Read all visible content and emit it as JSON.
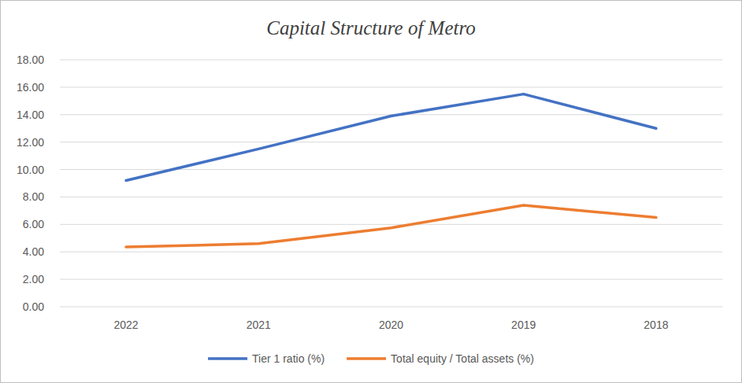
{
  "chart_data": {
    "type": "line",
    "title": "Capital Structure of Metro",
    "categories": [
      "2022",
      "2021",
      "2020",
      "2019",
      "2018"
    ],
    "series": [
      {
        "name": "Tier 1 ratio (%)",
        "color": "#4472c4",
        "values": [
          9.2,
          11.5,
          13.9,
          15.5,
          13.0
        ]
      },
      {
        "name": "Total equity / Total assets (%)",
        "color": "#ed7d31",
        "values": [
          4.35,
          4.6,
          5.75,
          7.4,
          6.5
        ]
      }
    ],
    "ylim": [
      0,
      18
    ],
    "yticks": [
      {
        "value": 0,
        "label": "0.00"
      },
      {
        "value": 2,
        "label": "2.00"
      },
      {
        "value": 4,
        "label": "4.00"
      },
      {
        "value": 6,
        "label": "6.00"
      },
      {
        "value": 8,
        "label": "8.00"
      },
      {
        "value": 10,
        "label": "10.00"
      },
      {
        "value": 12,
        "label": "12.00"
      },
      {
        "value": 14,
        "label": "14.00"
      },
      {
        "value": 16,
        "label": "16.00"
      },
      {
        "value": 18,
        "label": "18.00"
      }
    ],
    "grid": true,
    "legend": "bottom"
  }
}
